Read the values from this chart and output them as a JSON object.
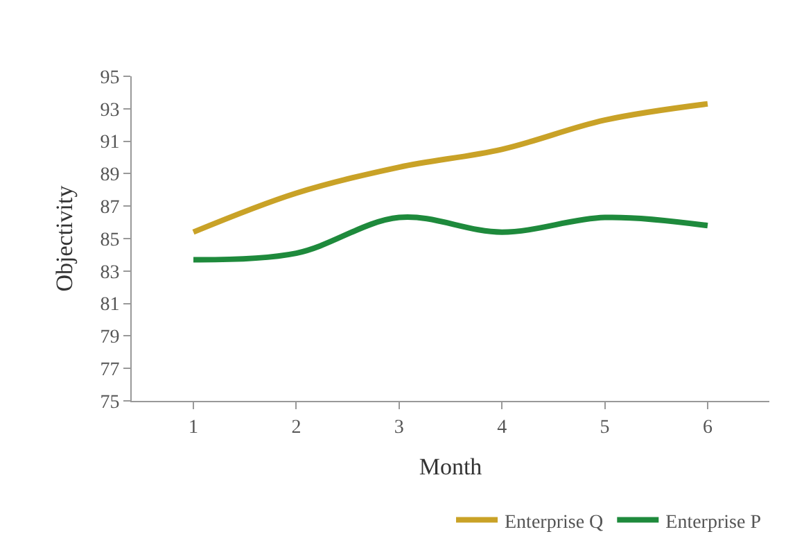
{
  "chart_data": {
    "type": "line",
    "xlabel": "Month",
    "ylabel": "Objectivity",
    "categories": [
      "1",
      "2",
      "3",
      "4",
      "5",
      "6"
    ],
    "series": [
      {
        "name": "Enterprise Q",
        "color": "#c9a227",
        "values": [
          85.4,
          87.8,
          89.4,
          90.5,
          92.3,
          93.3
        ]
      },
      {
        "name": "Enterprise P",
        "color": "#1e8a3c",
        "values": [
          83.7,
          84.1,
          86.3,
          85.4,
          86.3,
          85.8
        ]
      }
    ],
    "ylim": [
      75,
      95
    ],
    "yticks": [
      75,
      77,
      79,
      81,
      83,
      85,
      87,
      89,
      91,
      93,
      95
    ],
    "legend": "bottom right",
    "marker": "none",
    "line_style": "solid"
  }
}
